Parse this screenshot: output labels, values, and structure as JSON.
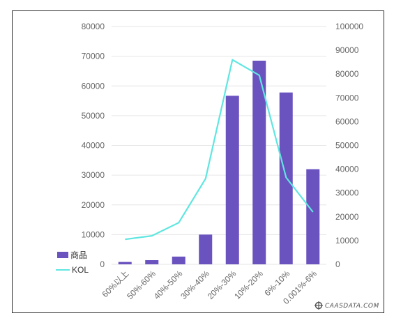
{
  "chart_data": {
    "type": "bar+line",
    "categories": [
      "60%以上",
      "50%-60%",
      "40%-50%",
      "30%-40%",
      "20%-30%",
      "10%-20%",
      "6%-10%",
      "0.001%-6%"
    ],
    "series": [
      {
        "name": "商品",
        "type": "bar",
        "axis": "left",
        "color": "#6a52bf",
        "values": [
          800,
          1400,
          2600,
          10000,
          56700,
          68500,
          57800,
          32000
        ]
      },
      {
        "name": "KOL",
        "type": "line",
        "axis": "right",
        "color": "#5fe6e0",
        "values": [
          10500,
          12000,
          17500,
          36000,
          86000,
          79500,
          36500,
          22000
        ]
      }
    ],
    "y_left": {
      "min": 0,
      "max": 80000,
      "ticks": [
        "0",
        "10000",
        "20000",
        "30000",
        "40000",
        "50000",
        "60000",
        "70000",
        "80000"
      ]
    },
    "y_right": {
      "min": 0,
      "max": 100000,
      "ticks": [
        "0",
        "10000",
        "20000",
        "30000",
        "40000",
        "50000",
        "60000",
        "70000",
        "80000",
        "90000",
        "100000"
      ]
    },
    "grid": true,
    "legend_position": "bottom-left"
  },
  "watermark": {
    "text": "CAASDATA.COM"
  }
}
